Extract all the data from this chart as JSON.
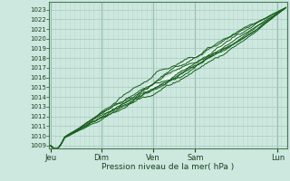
{
  "xlabel": "Pression niveau de la mer( hPa )",
  "ylim": [
    1009,
    1023.5
  ],
  "yticks": [
    1009,
    1010,
    1011,
    1012,
    1013,
    1014,
    1015,
    1016,
    1017,
    1018,
    1019,
    1020,
    1021,
    1022,
    1023
  ],
  "xtick_labels": [
    "Jeu",
    "Dim",
    "Ven",
    "Sam",
    "Lun"
  ],
  "xtick_positions": [
    0.0,
    0.215,
    0.435,
    0.615,
    0.965
  ],
  "background_color": "#cde8df",
  "grid_color_major": "#a8c8be",
  "grid_color_minor": "#b8d8cf",
  "line_color_dark": "#1a6020",
  "line_color_white": "#e8f8f0",
  "n_points": 300,
  "figsize": [
    3.2,
    2.0
  ],
  "dpi": 100
}
